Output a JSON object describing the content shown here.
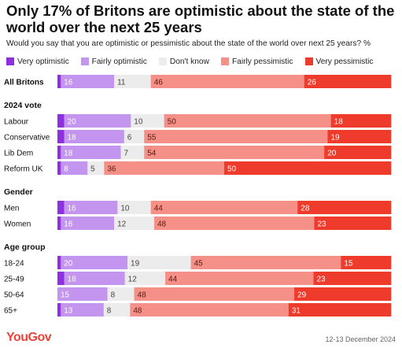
{
  "title": "Only 17% of Britons are optimistic about the state of the world over the next 25 years",
  "subtitle": "Would you say that you are optimistic or pessimistic about the state of the world over next 25 years? %",
  "footer": {
    "brand": "YouGov",
    "date": "12-13 December 2024"
  },
  "chart_data": {
    "type": "bar",
    "orientation": "horizontal",
    "stacked": true,
    "legend_position": "top-left",
    "categories_legend": [
      {
        "name": "Very optimistic",
        "color": "#8e2fe0"
      },
      {
        "name": "Fairly optimistic",
        "color": "#c395ef"
      },
      {
        "name": "Don't know",
        "color": "#ececec"
      },
      {
        "name": "Fairly pessimistic",
        "color": "#f49087"
      },
      {
        "name": "Very pessimistic",
        "color": "#ef3b2c"
      }
    ],
    "groups": [
      {
        "heading": "",
        "rows": [
          {
            "label": "All Britons",
            "bold": true,
            "values": [
              1,
              16,
              11,
              46,
              26
            ],
            "labels": [
              "",
              "16",
              "11",
              "46",
              "26"
            ]
          }
        ]
      },
      {
        "heading": "2024 vote",
        "rows": [
          {
            "label": "Labour",
            "values": [
              2,
              20,
              10,
              50,
              18
            ],
            "labels": [
              "",
              "20",
              "10",
              "50",
              "18"
            ]
          },
          {
            "label": "Conservative",
            "values": [
              2,
              18,
              6,
              55,
              19
            ],
            "labels": [
              "",
              "18",
              "6",
              "55",
              "19"
            ]
          },
          {
            "label": "Lib Dem",
            "values": [
              1,
              18,
              7,
              54,
              20
            ],
            "labels": [
              "",
              "18",
              "7",
              "54",
              "20"
            ]
          },
          {
            "label": "Reform UK",
            "values": [
              1,
              8,
              5,
              36,
              50
            ],
            "labels": [
              "",
              "8",
              "5",
              "36",
              "50"
            ]
          }
        ]
      },
      {
        "heading": "Gender",
        "rows": [
          {
            "label": "Men",
            "values": [
              2,
              16,
              10,
              44,
              28
            ],
            "labels": [
              "",
              "16",
              "10",
              "44",
              "28"
            ]
          },
          {
            "label": "Women",
            "values": [
              1,
              16,
              12,
              48,
              23
            ],
            "labels": [
              "",
              "16",
              "12",
              "48",
              "23"
            ]
          }
        ]
      },
      {
        "heading": "Age group",
        "rows": [
          {
            "label": "18-24",
            "values": [
              1,
              20,
              19,
              45,
              15
            ],
            "labels": [
              "",
              "20",
              "19",
              "45",
              "15"
            ]
          },
          {
            "label": "25-49",
            "values": [
              2,
              18,
              12,
              44,
              23
            ],
            "labels": [
              "",
              "18",
              "12",
              "44",
              "23"
            ]
          },
          {
            "label": "50-64",
            "values": [
              0,
              15,
              8,
              48,
              29
            ],
            "labels": [
              "",
              "15",
              "8",
              "48",
              "29"
            ]
          },
          {
            "label": "65+",
            "values": [
              1,
              13,
              8,
              48,
              31
            ],
            "labels": [
              "",
              "13",
              "8",
              "48",
              "31"
            ]
          }
        ]
      }
    ],
    "xlim": [
      0,
      100
    ]
  }
}
